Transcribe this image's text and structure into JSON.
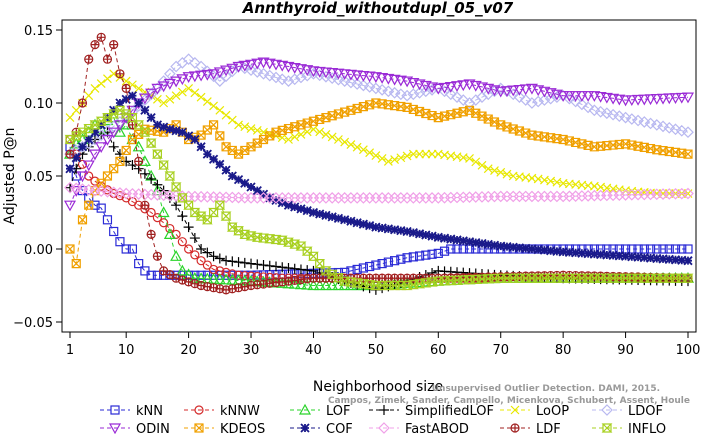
{
  "chart_data": {
    "type": "line",
    "title": "Annthyroid_withoutdupl_05_v07",
    "xlabel": "Neighborhood size",
    "ylabel": "Adjusted P@n",
    "xlim": [
      0,
      100
    ],
    "ylim": [
      -0.05,
      0.15
    ],
    "xticks": [
      1,
      10,
      20,
      30,
      40,
      50,
      60,
      70,
      80,
      90,
      100
    ],
    "xtick_labels": [
      "1",
      "10",
      "20",
      "30",
      "40",
      "50",
      "60",
      "70",
      "80",
      "90",
      "100"
    ],
    "yticks": [
      -0.05,
      0.0,
      0.05,
      0.1,
      0.15
    ],
    "ytick_labels": [
      "−0.05",
      "0.00",
      "0.05",
      "0.10",
      "0.15"
    ],
    "grid": false,
    "legend_position": "bottom",
    "credit": [
      "Unsupervised Outlier Detection. DAMI, 2015.",
      "Campos, Zimek, Sander, Campello, Micenkova, Schubert, Assent, Houle"
    ],
    "series": [
      {
        "name": "kNN",
        "color": "#2a2ad6",
        "marker": "square",
        "keypoints": [
          [
            1,
            0.07
          ],
          [
            2,
            0.05
          ],
          [
            3,
            0.04
          ],
          [
            4,
            0.035
          ],
          [
            5,
            0.03
          ],
          [
            6,
            0.028
          ],
          [
            7,
            0.02
          ],
          [
            8,
            0.012
          ],
          [
            9,
            0.005
          ],
          [
            10,
            0.0
          ],
          [
            11,
            0.0
          ],
          [
            12,
            -0.01
          ],
          [
            13,
            -0.015
          ],
          [
            14,
            -0.018
          ],
          [
            30,
            -0.018
          ],
          [
            45,
            -0.016
          ],
          [
            55,
            -0.006
          ],
          [
            60,
            -0.003
          ],
          [
            62,
            0.0
          ],
          [
            100,
            0.0
          ]
        ]
      },
      {
        "name": "kNNW",
        "color": "#d42a2a",
        "marker": "circle",
        "keypoints": [
          [
            1,
            0.075
          ],
          [
            2,
            0.065
          ],
          [
            3,
            0.058
          ],
          [
            4,
            0.05
          ],
          [
            6,
            0.043
          ],
          [
            8,
            0.038
          ],
          [
            10,
            0.035
          ],
          [
            12,
            0.03
          ],
          [
            14,
            0.025
          ],
          [
            16,
            0.018
          ],
          [
            18,
            0.01
          ],
          [
            20,
            0.0
          ],
          [
            22,
            -0.008
          ],
          [
            24,
            -0.014
          ],
          [
            28,
            -0.018
          ],
          [
            35,
            -0.02
          ],
          [
            50,
            -0.02
          ],
          [
            100,
            -0.02
          ]
        ]
      },
      {
        "name": "LOF",
        "color": "#2ad42a",
        "marker": "triangle",
        "keypoints": [
          [
            1,
            0.065
          ],
          [
            2,
            0.072
          ],
          [
            3,
            0.075
          ],
          [
            4,
            0.08
          ],
          [
            5,
            0.085
          ],
          [
            6,
            0.082
          ],
          [
            7,
            0.088
          ],
          [
            8,
            0.09
          ],
          [
            9,
            0.08
          ],
          [
            10,
            0.085
          ],
          [
            11,
            0.075
          ],
          [
            12,
            0.07
          ],
          [
            13,
            0.06
          ],
          [
            14,
            0.05
          ],
          [
            15,
            0.04
          ],
          [
            16,
            0.025
          ],
          [
            17,
            0.01
          ],
          [
            18,
            -0.005
          ],
          [
            19,
            -0.015
          ],
          [
            21,
            -0.02
          ],
          [
            30,
            -0.022
          ],
          [
            40,
            -0.025
          ],
          [
            50,
            -0.025
          ],
          [
            60,
            -0.022
          ],
          [
            70,
            -0.02
          ],
          [
            100,
            -0.02
          ]
        ]
      },
      {
        "name": "SimplifiedLOF",
        "color": "#000000",
        "marker": "plus",
        "keypoints": [
          [
            1,
            0.042
          ],
          [
            2,
            0.055
          ],
          [
            3,
            0.065
          ],
          [
            4,
            0.07
          ],
          [
            5,
            0.075
          ],
          [
            6,
            0.078
          ],
          [
            7,
            0.08
          ],
          [
            8,
            0.07
          ],
          [
            9,
            0.065
          ],
          [
            10,
            0.06
          ],
          [
            12,
            0.055
          ],
          [
            14,
            0.048
          ],
          [
            16,
            0.04
          ],
          [
            18,
            0.03
          ],
          [
            20,
            0.015
          ],
          [
            22,
            0.0
          ],
          [
            24,
            -0.005
          ],
          [
            26,
            -0.008
          ],
          [
            30,
            -0.01
          ],
          [
            40,
            -0.015
          ],
          [
            45,
            -0.022
          ],
          [
            50,
            -0.028
          ],
          [
            55,
            -0.022
          ],
          [
            60,
            -0.015
          ],
          [
            70,
            -0.018
          ],
          [
            80,
            -0.02
          ],
          [
            100,
            -0.022
          ]
        ]
      },
      {
        "name": "LoOP",
        "color": "#e8e800",
        "marker": "x",
        "keypoints": [
          [
            1,
            0.09
          ],
          [
            3,
            0.1
          ],
          [
            5,
            0.11
          ],
          [
            8,
            0.12
          ],
          [
            12,
            0.11
          ],
          [
            16,
            0.1
          ],
          [
            20,
            0.11
          ],
          [
            25,
            0.095
          ],
          [
            28,
            0.085
          ],
          [
            32,
            0.08
          ],
          [
            36,
            0.075
          ],
          [
            40,
            0.082
          ],
          [
            44,
            0.075
          ],
          [
            48,
            0.068
          ],
          [
            52,
            0.06
          ],
          [
            56,
            0.065
          ],
          [
            60,
            0.065
          ],
          [
            65,
            0.062
          ],
          [
            68,
            0.055
          ],
          [
            72,
            0.05
          ],
          [
            76,
            0.048
          ],
          [
            80,
            0.045
          ],
          [
            85,
            0.043
          ],
          [
            90,
            0.04
          ],
          [
            95,
            0.038
          ],
          [
            100,
            0.038
          ]
        ]
      },
      {
        "name": "LDOF",
        "color": "#b8b8f0",
        "marker": "diamond",
        "keypoints": [
          [
            1,
            0.065
          ],
          [
            5,
            0.075
          ],
          [
            10,
            0.09
          ],
          [
            15,
            0.11
          ],
          [
            18,
            0.125
          ],
          [
            20,
            0.13
          ],
          [
            22,
            0.125
          ],
          [
            25,
            0.115
          ],
          [
            28,
            0.125
          ],
          [
            32,
            0.12
          ],
          [
            36,
            0.115
          ],
          [
            40,
            0.12
          ],
          [
            45,
            0.115
          ],
          [
            50,
            0.11
          ],
          [
            55,
            0.105
          ],
          [
            60,
            0.11
          ],
          [
            65,
            0.1
          ],
          [
            70,
            0.11
          ],
          [
            75,
            0.1
          ],
          [
            80,
            0.105
          ],
          [
            85,
            0.095
          ],
          [
            90,
            0.09
          ],
          [
            95,
            0.085
          ],
          [
            100,
            0.08
          ]
        ]
      },
      {
        "name": "ODIN",
        "color": "#9a2ad6",
        "marker": "triangle-down",
        "keypoints": [
          [
            1,
            0.03
          ],
          [
            3,
            0.05
          ],
          [
            5,
            0.065
          ],
          [
            8,
            0.08
          ],
          [
            10,
            0.09
          ],
          [
            12,
            0.1
          ],
          [
            15,
            0.11
          ],
          [
            18,
            0.115
          ],
          [
            20,
            0.118
          ],
          [
            24,
            0.12
          ],
          [
            28,
            0.125
          ],
          [
            32,
            0.128
          ],
          [
            36,
            0.125
          ],
          [
            40,
            0.122
          ],
          [
            45,
            0.12
          ],
          [
            50,
            0.118
          ],
          [
            55,
            0.115
          ],
          [
            60,
            0.11
          ],
          [
            65,
            0.113
          ],
          [
            70,
            0.108
          ],
          [
            75,
            0.11
          ],
          [
            80,
            0.105
          ],
          [
            85,
            0.105
          ],
          [
            90,
            0.102
          ],
          [
            95,
            0.103
          ],
          [
            100,
            0.104
          ]
        ]
      },
      {
        "name": "KDEOS",
        "color": "#f0a000",
        "marker": "square-x",
        "keypoints": [
          [
            1,
            0.0
          ],
          [
            2,
            -0.01
          ],
          [
            3,
            0.02
          ],
          [
            5,
            0.04
          ],
          [
            7,
            0.05
          ],
          [
            9,
            0.06
          ],
          [
            11,
            0.075
          ],
          [
            13,
            0.082
          ],
          [
            16,
            0.08
          ],
          [
            18,
            0.085
          ],
          [
            20,
            0.075
          ],
          [
            22,
            0.078
          ],
          [
            24,
            0.085
          ],
          [
            26,
            0.07
          ],
          [
            28,
            0.065
          ],
          [
            30,
            0.07
          ],
          [
            34,
            0.08
          ],
          [
            38,
            0.085
          ],
          [
            42,
            0.09
          ],
          [
            46,
            0.095
          ],
          [
            50,
            0.1
          ],
          [
            55,
            0.097
          ],
          [
            60,
            0.09
          ],
          [
            65,
            0.095
          ],
          [
            70,
            0.085
          ],
          [
            75,
            0.078
          ],
          [
            80,
            0.075
          ],
          [
            85,
            0.07
          ],
          [
            90,
            0.072
          ],
          [
            95,
            0.068
          ],
          [
            100,
            0.065
          ]
        ]
      },
      {
        "name": "COF",
        "color": "#1a1a8a",
        "marker": "star",
        "keypoints": [
          [
            1,
            0.055
          ],
          [
            3,
            0.07
          ],
          [
            5,
            0.08
          ],
          [
            7,
            0.09
          ],
          [
            9,
            0.1
          ],
          [
            11,
            0.105
          ],
          [
            13,
            0.095
          ],
          [
            15,
            0.085
          ],
          [
            17,
            0.082
          ],
          [
            19,
            0.08
          ],
          [
            21,
            0.075
          ],
          [
            23,
            0.065
          ],
          [
            25,
            0.058
          ],
          [
            27,
            0.05
          ],
          [
            29,
            0.045
          ],
          [
            31,
            0.04
          ],
          [
            33,
            0.035
          ],
          [
            36,
            0.03
          ],
          [
            40,
            0.025
          ],
          [
            45,
            0.02
          ],
          [
            50,
            0.015
          ],
          [
            55,
            0.012
          ],
          [
            60,
            0.008
          ],
          [
            65,
            0.005
          ],
          [
            70,
            0.002
          ],
          [
            80,
            -0.002
          ],
          [
            90,
            -0.005
          ],
          [
            100,
            -0.008
          ]
        ]
      },
      {
        "name": "FastABOD",
        "color": "#f0a0e8",
        "marker": "diamond",
        "keypoints": [
          [
            1,
            0.042
          ],
          [
            5,
            0.04
          ],
          [
            10,
            0.038
          ],
          [
            20,
            0.036
          ],
          [
            30,
            0.035
          ],
          [
            40,
            0.035
          ],
          [
            50,
            0.035
          ],
          [
            60,
            0.035
          ],
          [
            70,
            0.036
          ],
          [
            80,
            0.036
          ],
          [
            90,
            0.037
          ],
          [
            100,
            0.038
          ]
        ]
      },
      {
        "name": "LDF",
        "color": "#a02020",
        "marker": "circle-plus",
        "keypoints": [
          [
            1,
            0.065
          ],
          [
            2,
            0.08
          ],
          [
            3,
            0.1
          ],
          [
            4,
            0.13
          ],
          [
            5,
            0.14
          ],
          [
            6,
            0.145
          ],
          [
            7,
            0.13
          ],
          [
            8,
            0.14
          ],
          [
            9,
            0.12
          ],
          [
            10,
            0.11
          ],
          [
            11,
            0.085
          ],
          [
            12,
            0.06
          ],
          [
            13,
            0.03
          ],
          [
            14,
            0.01
          ],
          [
            15,
            -0.005
          ],
          [
            16,
            -0.015
          ],
          [
            18,
            -0.02
          ],
          [
            22,
            -0.025
          ],
          [
            26,
            -0.028
          ],
          [
            30,
            -0.025
          ],
          [
            40,
            -0.02
          ],
          [
            60,
            -0.02
          ],
          [
            80,
            -0.018
          ],
          [
            100,
            -0.02
          ]
        ]
      },
      {
        "name": "INFLO",
        "color": "#a8d020",
        "marker": "hourglass",
        "keypoints": [
          [
            1,
            0.075
          ],
          [
            3,
            0.08
          ],
          [
            5,
            0.085
          ],
          [
            7,
            0.09
          ],
          [
            9,
            0.095
          ],
          [
            11,
            0.09
          ],
          [
            13,
            0.08
          ],
          [
            15,
            0.065
          ],
          [
            17,
            0.05
          ],
          [
            19,
            0.035
          ],
          [
            21,
            0.025
          ],
          [
            23,
            0.02
          ],
          [
            25,
            0.03
          ],
          [
            27,
            0.015
          ],
          [
            29,
            0.01
          ],
          [
            31,
            0.008
          ],
          [
            35,
            0.006
          ],
          [
            38,
            0.002
          ],
          [
            40,
            -0.005
          ],
          [
            42,
            -0.015
          ],
          [
            45,
            -0.022
          ],
          [
            50,
            -0.025
          ],
          [
            55,
            -0.025
          ],
          [
            60,
            -0.022
          ],
          [
            70,
            -0.02
          ],
          [
            80,
            -0.02
          ],
          [
            100,
            -0.02
          ]
        ]
      }
    ]
  }
}
